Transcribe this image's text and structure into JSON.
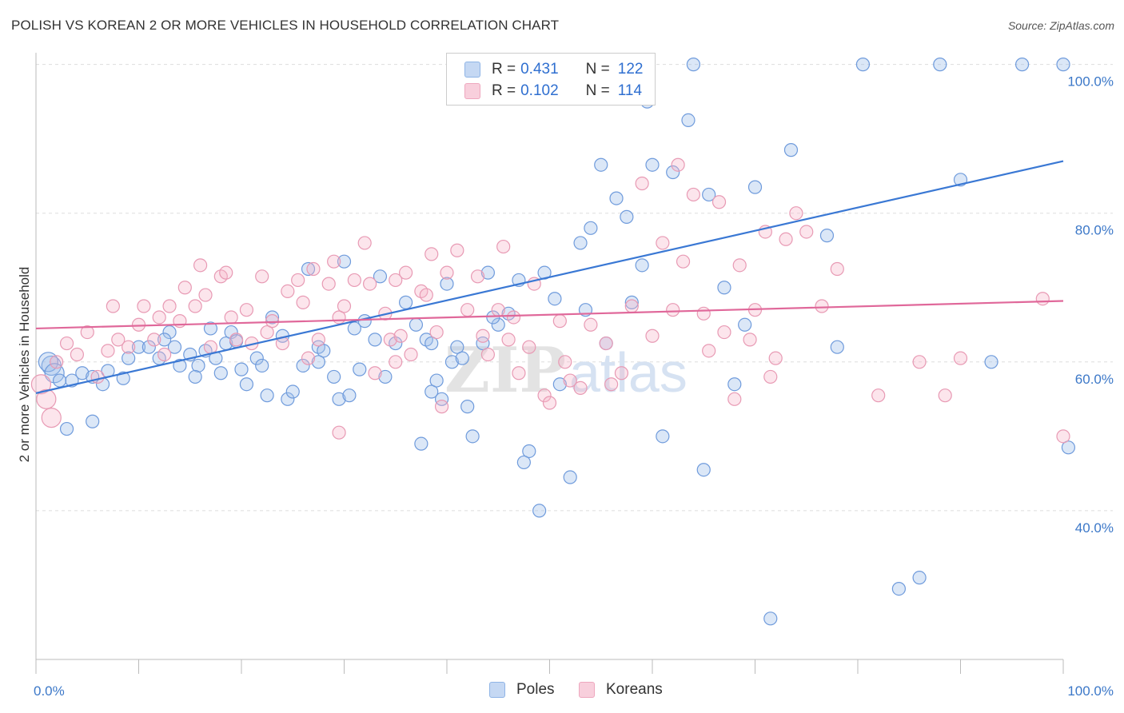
{
  "header": {
    "title": "POLISH VS KOREAN 2 OR MORE VEHICLES IN HOUSEHOLD CORRELATION CHART",
    "source": "Source: ZipAtlas.com"
  },
  "watermark": "ZIPatlas",
  "legend": {
    "r_label": "R =",
    "n_label": "N =",
    "rows": [
      {
        "name": "Poles",
        "r": "0.431",
        "n": "122",
        "color": "#8fb4e6",
        "fill": "#c5d8f3"
      },
      {
        "name": "Koreans",
        "r": "0.102",
        "n": "114",
        "color": "#eea7be",
        "fill": "#f8cfdc"
      }
    ]
  },
  "chart_data": {
    "type": "scatter",
    "title": "POLISH VS KOREAN 2 OR MORE VEHICLES IN HOUSEHOLD CORRELATION CHART",
    "xlabel": "",
    "ylabel": "2 or more Vehicles in Household",
    "xlim": [
      0,
      100
    ],
    "ylim": [
      20,
      102
    ],
    "x_tick_labels": [
      "0.0%",
      "100.0%"
    ],
    "y_ticks": [
      40,
      60,
      80,
      100
    ],
    "y_tick_labels": [
      "40.0%",
      "60.0%",
      "80.0%",
      "100.0%"
    ],
    "grid": true,
    "legend_position": "top-center",
    "series": [
      {
        "name": "Poles",
        "color": "#3a78d4",
        "trend": {
          "x": [
            0,
            100
          ],
          "y": [
            55.8,
            87.0
          ]
        },
        "points": [
          [
            1.5,
            59.5
          ],
          [
            1.2,
            60.0
          ],
          [
            1.8,
            58.5
          ],
          [
            2.3,
            57.5
          ],
          [
            3.5,
            57.5
          ],
          [
            4.5,
            58.5
          ],
          [
            5.5,
            58.0
          ],
          [
            6.5,
            57.0
          ],
          [
            7.0,
            58.8
          ],
          [
            8.5,
            57.8
          ],
          [
            9.0,
            60.5
          ],
          [
            10.0,
            62.0
          ],
          [
            11.0,
            62.0
          ],
          [
            12.0,
            60.5
          ],
          [
            13.0,
            64.0
          ],
          [
            13.5,
            62.0
          ],
          [
            14.0,
            59.5
          ],
          [
            15.0,
            61.0
          ],
          [
            15.8,
            59.5
          ],
          [
            16.5,
            61.5
          ],
          [
            17.5,
            60.5
          ],
          [
            18.0,
            58.5
          ],
          [
            17.0,
            64.5
          ],
          [
            18.5,
            62.5
          ],
          [
            19.0,
            64.0
          ],
          [
            19.5,
            62.8
          ],
          [
            20.5,
            57.0
          ],
          [
            21.5,
            60.5
          ],
          [
            22.0,
            59.5
          ],
          [
            22.5,
            55.5
          ],
          [
            24.0,
            63.5
          ],
          [
            24.5,
            55.0
          ],
          [
            25.0,
            56.0
          ],
          [
            26.0,
            59.5
          ],
          [
            27.5,
            62.0
          ],
          [
            28.0,
            61.5
          ],
          [
            29.0,
            58.0
          ],
          [
            29.5,
            55.0
          ],
          [
            30.5,
            55.5
          ],
          [
            31.0,
            64.5
          ],
          [
            32.0,
            65.5
          ],
          [
            33.0,
            63.0
          ],
          [
            34.0,
            58.0
          ],
          [
            35.0,
            62.5
          ],
          [
            36.0,
            68.0
          ],
          [
            37.0,
            65.0
          ],
          [
            38.0,
            63.0
          ],
          [
            38.5,
            56.0
          ],
          [
            39.5,
            55.0
          ],
          [
            40.5,
            60.0
          ],
          [
            41.0,
            62.0
          ],
          [
            41.5,
            60.5
          ],
          [
            42.0,
            54.0
          ],
          [
            42.5,
            50.0
          ],
          [
            43.5,
            62.5
          ],
          [
            44.0,
            72.0
          ],
          [
            45.0,
            65.0
          ],
          [
            46.0,
            66.5
          ],
          [
            47.0,
            71.0
          ],
          [
            48.0,
            48.0
          ],
          [
            49.0,
            40.0
          ],
          [
            49.5,
            72.0
          ],
          [
            50.5,
            68.5
          ],
          [
            51.0,
            57.0
          ],
          [
            52.0,
            44.5
          ],
          [
            53.0,
            76.0
          ],
          [
            54.0,
            78.0
          ],
          [
            55.0,
            86.5
          ],
          [
            55.5,
            62.5
          ],
          [
            56.5,
            82.0
          ],
          [
            57.5,
            79.5
          ],
          [
            58.0,
            68.0
          ],
          [
            59.0,
            73.0
          ],
          [
            59.5,
            95.0
          ],
          [
            60.0,
            86.5
          ],
          [
            61.0,
            50.0
          ],
          [
            62.0,
            85.5
          ],
          [
            63.5,
            92.5
          ],
          [
            64.0,
            100.0
          ],
          [
            65.0,
            45.5
          ],
          [
            65.5,
            82.5
          ],
          [
            67.0,
            70.0
          ],
          [
            68.0,
            57.0
          ],
          [
            69.0,
            65.0
          ],
          [
            70.0,
            83.5
          ],
          [
            71.5,
            25.5
          ],
          [
            73.5,
            88.5
          ],
          [
            77.0,
            77.0
          ],
          [
            78.0,
            62.0
          ],
          [
            80.5,
            100.0
          ],
          [
            84.0,
            29.5
          ],
          [
            86.0,
            31.0
          ],
          [
            88.0,
            100.0
          ],
          [
            90.0,
            84.5
          ],
          [
            93.0,
            60.0
          ],
          [
            96.0,
            100.0
          ],
          [
            100.0,
            100.0
          ],
          [
            100.5,
            48.5
          ],
          [
            3.0,
            51.0
          ],
          [
            5.5,
            52.0
          ],
          [
            37.5,
            49.0
          ],
          [
            47.5,
            46.5
          ],
          [
            33.5,
            71.5
          ],
          [
            23.0,
            66.0
          ],
          [
            26.5,
            72.5
          ],
          [
            15.5,
            58.0
          ],
          [
            12.5,
            63.0
          ],
          [
            38.5,
            62.5
          ],
          [
            27.5,
            60.0
          ],
          [
            30.0,
            73.5
          ],
          [
            39.0,
            57.5
          ],
          [
            53.5,
            67.0
          ],
          [
            44.5,
            66.0
          ],
          [
            40.0,
            70.5
          ],
          [
            31.5,
            59.0
          ],
          [
            20.0,
            59.0
          ]
        ]
      },
      {
        "name": "Koreans",
        "color": "#e0689a",
        "trend": {
          "x": [
            0,
            100
          ],
          "y": [
            64.5,
            68.2
          ]
        },
        "points": [
          [
            0.5,
            57.0
          ],
          [
            1.0,
            55.0
          ],
          [
            1.5,
            52.5
          ],
          [
            2.0,
            60.0
          ],
          [
            3.0,
            62.5
          ],
          [
            4.0,
            61.0
          ],
          [
            5.0,
            64.0
          ],
          [
            6.0,
            58.0
          ],
          [
            7.0,
            61.5
          ],
          [
            7.5,
            67.5
          ],
          [
            8.0,
            63.0
          ],
          [
            9.0,
            62.0
          ],
          [
            10.0,
            65.0
          ],
          [
            10.5,
            67.5
          ],
          [
            11.5,
            63.0
          ],
          [
            12.0,
            66.0
          ],
          [
            12.5,
            61.0
          ],
          [
            13.0,
            67.5
          ],
          [
            14.0,
            65.5
          ],
          [
            14.5,
            70.0
          ],
          [
            15.5,
            67.5
          ],
          [
            16.0,
            73.0
          ],
          [
            16.5,
            69.0
          ],
          [
            17.0,
            62.0
          ],
          [
            18.0,
            71.5
          ],
          [
            18.5,
            72.0
          ],
          [
            19.0,
            66.0
          ],
          [
            19.5,
            63.0
          ],
          [
            20.5,
            67.0
          ],
          [
            21.0,
            62.5
          ],
          [
            22.0,
            71.5
          ],
          [
            22.5,
            64.0
          ],
          [
            23.0,
            65.5
          ],
          [
            24.0,
            62.5
          ],
          [
            24.5,
            69.5
          ],
          [
            25.5,
            71.0
          ],
          [
            26.0,
            68.0
          ],
          [
            26.5,
            60.5
          ],
          [
            27.0,
            72.5
          ],
          [
            27.5,
            63.0
          ],
          [
            28.5,
            70.5
          ],
          [
            29.0,
            73.5
          ],
          [
            29.5,
            66.0
          ],
          [
            30.0,
            67.5
          ],
          [
            31.0,
            71.0
          ],
          [
            32.0,
            76.0
          ],
          [
            32.5,
            70.5
          ],
          [
            33.0,
            58.5
          ],
          [
            34.0,
            66.5
          ],
          [
            34.5,
            63.0
          ],
          [
            35.0,
            71.0
          ],
          [
            35.5,
            63.5
          ],
          [
            36.0,
            72.0
          ],
          [
            36.5,
            61.0
          ],
          [
            37.5,
            69.5
          ],
          [
            38.0,
            69.0
          ],
          [
            38.5,
            74.5
          ],
          [
            39.0,
            64.0
          ],
          [
            39.5,
            54.0
          ],
          [
            40.0,
            72.0
          ],
          [
            41.0,
            75.0
          ],
          [
            42.0,
            67.0
          ],
          [
            43.0,
            71.5
          ],
          [
            43.5,
            63.5
          ],
          [
            44.0,
            61.0
          ],
          [
            45.0,
            67.0
          ],
          [
            45.5,
            75.5
          ],
          [
            46.0,
            63.0
          ],
          [
            47.0,
            58.5
          ],
          [
            48.0,
            62.0
          ],
          [
            48.5,
            70.5
          ],
          [
            49.5,
            55.5
          ],
          [
            50.0,
            54.5
          ],
          [
            51.5,
            60.0
          ],
          [
            52.0,
            57.5
          ],
          [
            53.0,
            56.5
          ],
          [
            54.0,
            65.0
          ],
          [
            55.5,
            62.5
          ],
          [
            56.0,
            57.0
          ],
          [
            57.0,
            58.5
          ],
          [
            58.0,
            67.5
          ],
          [
            59.0,
            84.0
          ],
          [
            60.0,
            63.5
          ],
          [
            61.0,
            76.0
          ],
          [
            62.0,
            67.0
          ],
          [
            62.5,
            86.5
          ],
          [
            63.0,
            73.5
          ],
          [
            64.0,
            82.5
          ],
          [
            65.0,
            66.5
          ],
          [
            65.5,
            61.5
          ],
          [
            66.5,
            81.5
          ],
          [
            67.0,
            64.0
          ],
          [
            68.0,
            55.0
          ],
          [
            68.5,
            73.0
          ],
          [
            69.5,
            63.0
          ],
          [
            70.0,
            67.0
          ],
          [
            71.0,
            77.5
          ],
          [
            71.5,
            58.0
          ],
          [
            72.0,
            60.5
          ],
          [
            73.0,
            76.5
          ],
          [
            74.0,
            80.0
          ],
          [
            75.0,
            77.5
          ],
          [
            76.5,
            67.5
          ],
          [
            78.0,
            72.5
          ],
          [
            82.0,
            55.5
          ],
          [
            86.0,
            60.0
          ],
          [
            88.5,
            55.5
          ],
          [
            90.0,
            60.5
          ],
          [
            98.0,
            68.5
          ],
          [
            100.0,
            50.0
          ],
          [
            51.0,
            65.5
          ],
          [
            46.5,
            66.0
          ],
          [
            35.0,
            60.0
          ],
          [
            29.5,
            50.5
          ]
        ]
      }
    ]
  }
}
